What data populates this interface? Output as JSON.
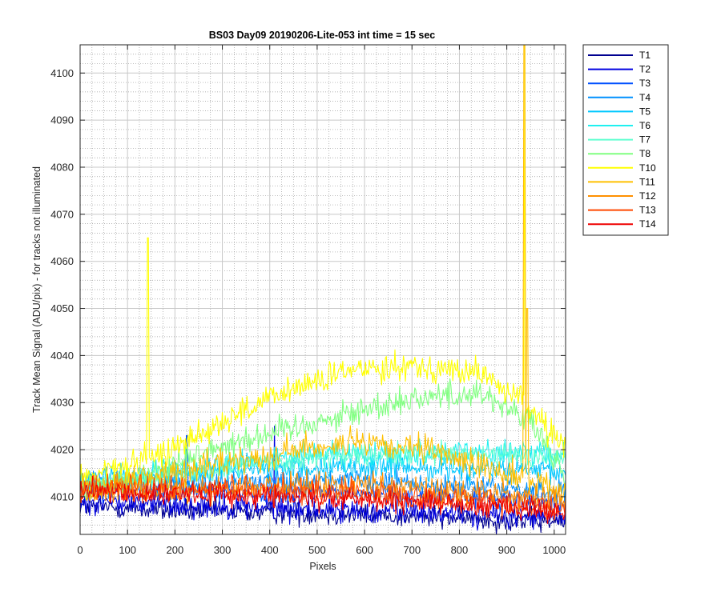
{
  "chart_data": {
    "type": "line",
    "title": "BS03 Day09 20190206-Lite-053 int time = 15 sec",
    "xlabel": "Pixels",
    "ylabel": "Track Mean Signal (ADU/pix) - for tracks not illuminated",
    "xlim": [
      0,
      1024
    ],
    "ylim": [
      4002,
      4106
    ],
    "x_ticks": [
      0,
      100,
      200,
      300,
      400,
      500,
      600,
      700,
      800,
      900,
      1000
    ],
    "y_ticks": [
      4010,
      4020,
      4030,
      4040,
      4050,
      4060,
      4070,
      4080,
      4090,
      4100
    ],
    "x_minor_step": 25,
    "y_minor_step": 2,
    "grid": "major and minor",
    "legend_position": "outside-right",
    "series": [
      {
        "name": "T1",
        "color": "#000090",
        "profile": [
          [
            0,
            4008
          ],
          [
            200,
            4007
          ],
          [
            500,
            4006.5
          ],
          [
            800,
            4005.5
          ],
          [
            1024,
            4004.5
          ]
        ],
        "noise": 1.2,
        "spikes": []
      },
      {
        "name": "T2",
        "color": "#0000e0",
        "profile": [
          [
            0,
            4009
          ],
          [
            300,
            4008
          ],
          [
            600,
            4007
          ],
          [
            900,
            4006
          ],
          [
            1024,
            4005.5
          ]
        ],
        "noise": 1.3,
        "spikes": [
          [
            410,
            4025
          ]
        ]
      },
      {
        "name": "T3",
        "color": "#0050ff",
        "profile": [
          [
            0,
            4012
          ],
          [
            200,
            4011
          ],
          [
            500,
            4011
          ],
          [
            800,
            4010
          ],
          [
            1024,
            4009
          ]
        ],
        "noise": 1.2,
        "spikes": [
          [
            225,
            4023
          ]
        ]
      },
      {
        "name": "T4",
        "color": "#0090ff",
        "profile": [
          [
            0,
            4013
          ],
          [
            250,
            4013
          ],
          [
            550,
            4013.5
          ],
          [
            850,
            4012
          ],
          [
            1024,
            4011
          ]
        ],
        "noise": 1.2,
        "spikes": []
      },
      {
        "name": "T5",
        "color": "#00c8ff",
        "profile": [
          [
            0,
            4013
          ],
          [
            200,
            4015
          ],
          [
            500,
            4016.5
          ],
          [
            800,
            4016
          ],
          [
            1024,
            4015
          ]
        ],
        "noise": 1.3,
        "spikes": []
      },
      {
        "name": "T6",
        "color": "#20f0f0",
        "profile": [
          [
            0,
            4012
          ],
          [
            200,
            4015.5
          ],
          [
            500,
            4019
          ],
          [
            800,
            4019.5
          ],
          [
            1024,
            4019
          ]
        ],
        "noise": 1.3,
        "spikes": []
      },
      {
        "name": "T7",
        "color": "#60ffd0",
        "profile": [
          [
            0,
            4012
          ],
          [
            200,
            4015
          ],
          [
            500,
            4018.5
          ],
          [
            800,
            4019
          ],
          [
            1024,
            4018
          ]
        ],
        "noise": 1.2,
        "spikes": []
      },
      {
        "name": "T8",
        "color": "#80ff80",
        "profile": [
          [
            0,
            4011
          ],
          [
            150,
            4015
          ],
          [
            300,
            4021
          ],
          [
            500,
            4026
          ],
          [
            700,
            4031
          ],
          [
            850,
            4032
          ],
          [
            950,
            4026
          ],
          [
            1024,
            4014
          ]
        ],
        "noise": 1.5,
        "spikes": []
      },
      {
        "name": "T10",
        "color": "#ffff00",
        "profile": [
          [
            0,
            4014
          ],
          [
            150,
            4018
          ],
          [
            300,
            4026
          ],
          [
            450,
            4033
          ],
          [
            600,
            4037.5
          ],
          [
            700,
            4038
          ],
          [
            850,
            4036
          ],
          [
            950,
            4029
          ],
          [
            1024,
            4020
          ]
        ],
        "noise": 1.5,
        "spikes": [
          [
            143,
            4065
          ],
          [
            938,
            4106
          ]
        ]
      },
      {
        "name": "T11",
        "color": "#ffc000",
        "profile": [
          [
            0,
            4012
          ],
          [
            200,
            4015
          ],
          [
            400,
            4019
          ],
          [
            550,
            4021.5
          ],
          [
            750,
            4019.5
          ],
          [
            900,
            4015
          ],
          [
            1024,
            4011
          ]
        ],
        "noise": 1.5,
        "spikes": [
          [
            937,
            4106
          ],
          [
            943,
            4050
          ]
        ]
      },
      {
        "name": "T12",
        "color": "#ff9000",
        "profile": [
          [
            0,
            4011
          ],
          [
            300,
            4012
          ],
          [
            600,
            4012.5
          ],
          [
            900,
            4010.5
          ],
          [
            1024,
            4009
          ]
        ],
        "noise": 1.4,
        "spikes": []
      },
      {
        "name": "T13",
        "color": "#ff4800",
        "profile": [
          [
            0,
            4012
          ],
          [
            300,
            4011.5
          ],
          [
            600,
            4011
          ],
          [
            900,
            4008.5
          ],
          [
            1024,
            4007.5
          ]
        ],
        "noise": 1.4,
        "spikes": []
      },
      {
        "name": "T14",
        "color": "#ee0000",
        "profile": [
          [
            0,
            4011
          ],
          [
            300,
            4010.5
          ],
          [
            600,
            4009.5
          ],
          [
            900,
            4008
          ],
          [
            1024,
            4007
          ]
        ],
        "noise": 1.2,
        "spikes": []
      }
    ]
  }
}
